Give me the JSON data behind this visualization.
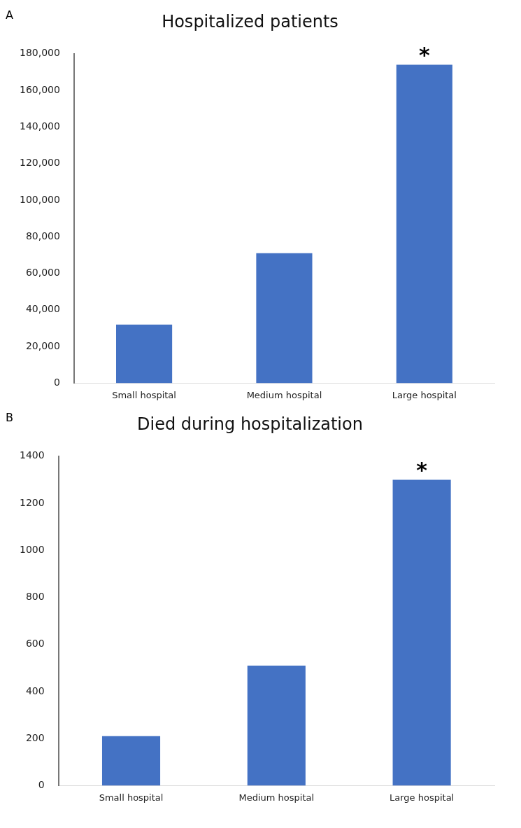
{
  "chart_data": [
    {
      "type": "bar",
      "title": "Hospitalized patients",
      "categories": [
        "Small hospital",
        "Medium hospital",
        "Large hospital"
      ],
      "values": [
        32000,
        71000,
        174000
      ],
      "color": "#4472c4",
      "ylim": [
        0,
        180000
      ],
      "yticks": [
        0,
        {
          "value": 20000,
          "label": "20,000"
        },
        {
          "value": 40000,
          "label": "40,000"
        },
        {
          "value": 60000,
          "label": "60,000"
        },
        {
          "value": 80000,
          "label": "80,000"
        },
        {
          "value": 100000,
          "label": "100,000"
        },
        {
          "value": 120000,
          "label": "120,000"
        },
        {
          "value": 140000,
          "label": "140,000"
        },
        {
          "value": 160000,
          "label": "160,000"
        },
        {
          "value": 180000,
          "label": "180,000"
        }
      ],
      "grid": false,
      "annotations": [
        "A",
        {
          "text": "*",
          "x": "Large hospital",
          "y": 174000
        }
      ]
    },
    {
      "type": "bar",
      "title": "Died during hospitalization",
      "categories": [
        "Small hospital",
        "Medium hospital",
        "Large hospital"
      ],
      "values": [
        210,
        510,
        1300
      ],
      "color": "#4472c4",
      "ylim": [
        0,
        1400
      ],
      "yticks": [
        0,
        200,
        400,
        600,
        800,
        1000,
        1200,
        1400
      ],
      "grid": false,
      "annotations": [
        "B",
        {
          "text": "*",
          "x": "Large hospital",
          "y": 1300
        }
      ]
    }
  ]
}
